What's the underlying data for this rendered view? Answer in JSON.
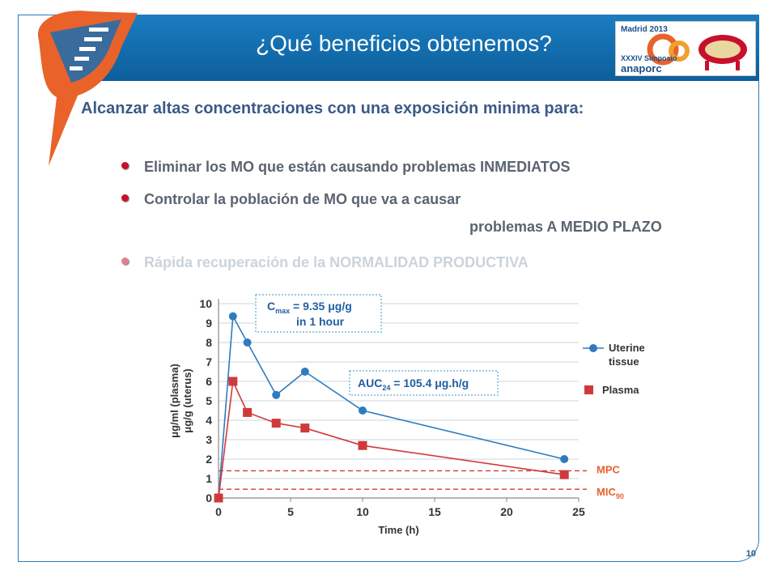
{
  "slide": {
    "title": "¿Qué beneficios obtenemos?",
    "lead": "Alcanzar altas concentraciones con una exposición minima para:",
    "bullets": [
      {
        "text": "Eliminar los MO que están causando problemas INMEDIATOS"
      },
      {
        "text": "Controlar la población de MO que va a causar",
        "text2": "problemas A MEDIO PLAZO"
      },
      {
        "text": "Rápida recuperación de la NORMALIDAD PRODUCTIVA"
      }
    ],
    "page_number": "10",
    "logo": {
      "line1": "Madrid 2013",
      "line2": "XXXIV Simposio",
      "line3": "anaporc"
    }
  },
  "colors": {
    "header": "#1a7cc0",
    "orange": "#e8622a",
    "uterine": "#2e7bbf",
    "plasma": "#d0393b",
    "bullet_dot": "#c8102e"
  },
  "chart_data": {
    "type": "line",
    "xlabel": "Time (h)",
    "ylabel_line1": "μg/ml (plasma)",
    "ylabel_line2": "μg/g (uterus)",
    "xlim": [
      0,
      25
    ],
    "ylim": [
      0,
      10
    ],
    "x_ticks": [
      0,
      5,
      10,
      15,
      20,
      25
    ],
    "y_ticks": [
      0,
      1,
      2,
      3,
      4,
      5,
      6,
      7,
      8,
      9,
      10
    ],
    "grid": "horizontal",
    "series": [
      {
        "name": "Uterine tissue",
        "name_line1": "Uterine",
        "name_line2": "tissue",
        "marker": "circle",
        "color": "#2e7bbf",
        "x": [
          0,
          1,
          2,
          4,
          6,
          10,
          24
        ],
        "y": [
          0,
          9.35,
          8.0,
          5.3,
          6.5,
          4.5,
          2.0
        ]
      },
      {
        "name": "Plasma",
        "marker": "square",
        "color": "#d0393b",
        "x": [
          0,
          1,
          2,
          4,
          6,
          10,
          24
        ],
        "y": [
          0,
          6.0,
          4.4,
          3.85,
          3.6,
          2.7,
          1.2
        ]
      }
    ],
    "reference_lines": [
      {
        "label": "MPC",
        "sub": "",
        "y": 1.4
      },
      {
        "label": "MIC",
        "sub": "90",
        "y": 0.45
      }
    ],
    "annotations": [
      {
        "main": "C",
        "sub": "max",
        "rest": " = 9.35 μg/g",
        "line2": "in 1 hour"
      },
      {
        "main": "AUC",
        "sub": "24",
        "rest": " = 105.4 μg.h/g"
      }
    ]
  }
}
